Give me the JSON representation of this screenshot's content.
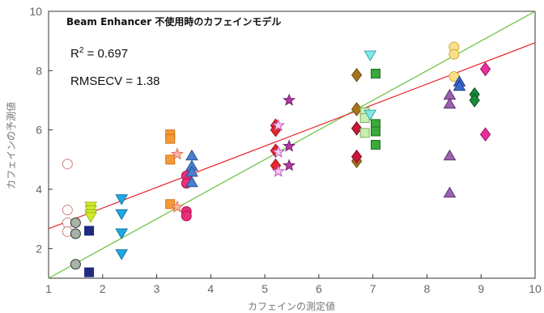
{
  "chart_data": {
    "type": "scatter",
    "title": "Beam Enhancer 不使用時のカフェインモデル",
    "xlabel": "カフェインの測定値",
    "ylabel": "カフェインの予測値",
    "xlim": [
      1,
      10
    ],
    "ylim": [
      1,
      10
    ],
    "xticks": [
      "1",
      "2",
      "3",
      "4",
      "5",
      "6",
      "7",
      "8",
      "9",
      "10"
    ],
    "yticks": [
      "2",
      "4",
      "6",
      "8",
      "10"
    ],
    "grid": false,
    "annotations": {
      "r2_prefix": "R",
      "r2_sup": "2",
      "r2_value": " = 0.697",
      "rmsecv": "RMSECV = 1.38"
    },
    "lines": [
      {
        "role": "ideal",
        "color": "#6abf3a",
        "x": [
          1,
          10
        ],
        "y": [
          1,
          10
        ]
      },
      {
        "role": "regression",
        "color": "#e8262b",
        "x": [
          1,
          10
        ],
        "y": [
          2.67,
          8.94
        ]
      }
    ],
    "groups": [
      {
        "marker": "circle",
        "fill": "#ffffff",
        "stroke": "#c9857a",
        "points": [
          [
            1.35,
            4.85
          ],
          [
            1.35,
            3.3
          ],
          [
            1.35,
            2.87
          ],
          [
            1.35,
            2.57
          ]
        ]
      },
      {
        "marker": "circle",
        "fill": "#a7b3a5",
        "stroke": "#333333",
        "points": [
          [
            1.5,
            2.87
          ],
          [
            1.5,
            2.5
          ],
          [
            1.5,
            1.47
          ]
        ]
      },
      {
        "marker": "square",
        "fill": "#1f2a80",
        "stroke": "#1f2a80",
        "points": [
          [
            1.75,
            2.6
          ],
          [
            1.75,
            1.2
          ]
        ]
      },
      {
        "marker": "triangle-down",
        "fill": "#d4ea2a",
        "stroke": "#9ab81a",
        "points": [
          [
            1.78,
            3.4
          ],
          [
            1.78,
            3.28
          ],
          [
            1.78,
            3.15
          ],
          [
            1.78,
            3.05
          ]
        ]
      },
      {
        "marker": "triangle-down",
        "fill": "#1ea8e0",
        "stroke": "#1877a8",
        "points": [
          [
            2.35,
            3.65
          ],
          [
            2.35,
            3.15
          ],
          [
            2.35,
            2.5
          ],
          [
            2.35,
            1.8
          ]
        ]
      },
      {
        "marker": "square",
        "fill": "#f49a3a",
        "stroke": "#d07010",
        "points": [
          [
            3.25,
            5.85
          ],
          [
            3.25,
            5.7
          ],
          [
            3.25,
            5.0
          ],
          [
            3.25,
            3.5
          ]
        ]
      },
      {
        "marker": "star",
        "fill": "#f8b8a8",
        "stroke": "#e86f50",
        "points": [
          [
            3.38,
            5.18
          ],
          [
            3.38,
            3.4
          ]
        ]
      },
      {
        "marker": "circle",
        "fill": "#e8307a",
        "stroke": "#b01050",
        "points": [
          [
            3.55,
            4.45
          ],
          [
            3.55,
            4.2
          ],
          [
            3.55,
            3.25
          ],
          [
            3.55,
            3.1
          ]
        ]
      },
      {
        "marker": "triangle-up",
        "fill": "#4a7fd0",
        "stroke": "#2a5090",
        "points": [
          [
            3.65,
            5.15
          ],
          [
            3.65,
            4.8
          ],
          [
            3.65,
            4.6
          ],
          [
            3.65,
            4.25
          ]
        ]
      },
      {
        "marker": "diamond",
        "fill": "#e8262b",
        "stroke": "#a01010",
        "points": [
          [
            5.2,
            6.15
          ],
          [
            5.2,
            6.0
          ],
          [
            5.2,
            5.3
          ],
          [
            5.2,
            4.8
          ]
        ]
      },
      {
        "marker": "star",
        "fill": "#f0d0f0",
        "stroke": "#c050c0",
        "points": [
          [
            5.25,
            6.15
          ],
          [
            5.25,
            5.25
          ],
          [
            5.25,
            4.6
          ]
        ]
      },
      {
        "marker": "star",
        "fill": "#b03aa0",
        "stroke": "#7a1a70",
        "points": [
          [
            5.45,
            7.0
          ],
          [
            5.45,
            5.45
          ],
          [
            5.45,
            4.8
          ]
        ]
      },
      {
        "marker": "diamond",
        "fill": "#a8741a",
        "stroke": "#6a4a10",
        "points": [
          [
            6.7,
            7.85
          ],
          [
            6.7,
            6.7
          ],
          [
            6.7,
            6.05
          ],
          [
            6.7,
            4.95
          ]
        ]
      },
      {
        "marker": "diamond",
        "fill": "#c81838",
        "stroke": "#801020",
        "points": [
          [
            6.7,
            6.05
          ],
          [
            6.7,
            5.1
          ]
        ]
      },
      {
        "marker": "square",
        "fill": "#c8eeb0",
        "stroke": "#80b060",
        "points": [
          [
            6.85,
            6.6
          ],
          [
            6.85,
            6.4
          ],
          [
            6.85,
            5.9
          ]
        ]
      },
      {
        "marker": "triangle-down",
        "fill": "#80e8e8",
        "stroke": "#40a8a8",
        "points": [
          [
            6.95,
            8.5
          ],
          [
            6.95,
            6.5
          ]
        ]
      },
      {
        "marker": "square",
        "fill": "#3aa83a",
        "stroke": "#207020",
        "points": [
          [
            7.05,
            7.9
          ],
          [
            7.05,
            6.2
          ],
          [
            7.05,
            5.95
          ],
          [
            7.05,
            5.5
          ]
        ]
      },
      {
        "marker": "triangle-up",
        "fill": "#9a62b0",
        "stroke": "#603070",
        "points": [
          [
            8.42,
            7.2
          ],
          [
            8.42,
            6.9
          ],
          [
            8.42,
            5.15
          ],
          [
            8.42,
            3.9
          ]
        ]
      },
      {
        "marker": "circle",
        "fill": "#fbe08a",
        "stroke": "#d0a830",
        "points": [
          [
            8.5,
            8.8
          ],
          [
            8.5,
            8.55
          ],
          [
            8.5,
            7.8
          ]
        ]
      },
      {
        "marker": "triangle-up",
        "fill": "#3a6ad0",
        "stroke": "#203a80",
        "points": [
          [
            8.6,
            7.65
          ],
          [
            8.6,
            7.5
          ]
        ]
      },
      {
        "marker": "diamond",
        "fill": "#1a8a3a",
        "stroke": "#0a5020",
        "points": [
          [
            8.88,
            7.2
          ],
          [
            8.88,
            7.0
          ]
        ]
      },
      {
        "marker": "diamond",
        "fill": "#e8309a",
        "stroke": "#a01060",
        "points": [
          [
            9.08,
            8.05
          ],
          [
            9.08,
            5.85
          ]
        ]
      }
    ]
  }
}
